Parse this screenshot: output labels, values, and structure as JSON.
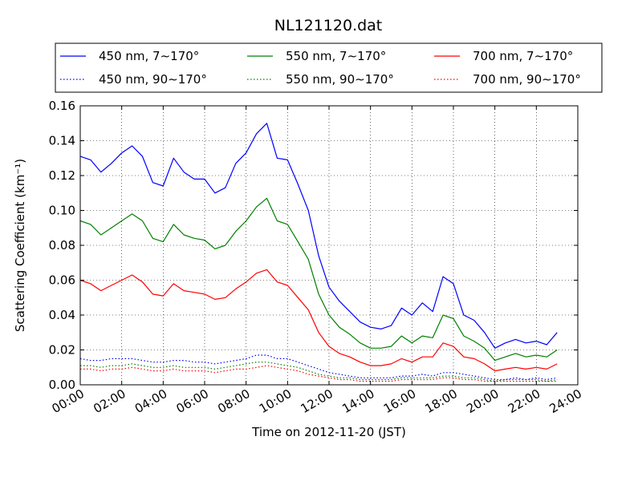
{
  "chart_data": {
    "type": "line",
    "title": "NL121120.dat",
    "xlabel": "Time on 2012-11-20 (JST)",
    "ylabel": "Scattering Coefficient (km⁻¹)",
    "xlim": [
      "00:00",
      "24:00"
    ],
    "ylim": [
      0,
      0.16
    ],
    "grid": true,
    "legend_position": "top",
    "x_ticks": [
      "00:00",
      "02:00",
      "04:00",
      "06:00",
      "08:00",
      "10:00",
      "12:00",
      "14:00",
      "16:00",
      "18:00",
      "20:00",
      "22:00",
      "24:00"
    ],
    "y_ticks": [
      "0.00",
      "0.02",
      "0.04",
      "0.06",
      "0.08",
      "0.10",
      "0.12",
      "0.14",
      "0.16"
    ],
    "x": [
      "00:00",
      "00:30",
      "01:00",
      "01:30",
      "02:00",
      "02:30",
      "03:00",
      "03:30",
      "04:00",
      "04:30",
      "05:00",
      "05:30",
      "06:00",
      "06:30",
      "07:00",
      "07:30",
      "08:00",
      "08:30",
      "09:00",
      "09:30",
      "10:00",
      "10:30",
      "11:00",
      "11:30",
      "12:00",
      "12:30",
      "13:00",
      "13:30",
      "14:00",
      "14:30",
      "15:00",
      "15:30",
      "16:00",
      "16:30",
      "17:00",
      "17:30",
      "18:00",
      "18:30",
      "19:00",
      "19:30",
      "20:00",
      "20:30",
      "21:00",
      "21:30",
      "22:00",
      "22:30",
      "23:00"
    ],
    "series": [
      {
        "name": "450 nm, 7∼170°",
        "color": "#0000ff",
        "style": "solid",
        "values": [
          0.131,
          0.129,
          0.122,
          0.127,
          0.133,
          0.137,
          0.131,
          0.116,
          0.114,
          0.13,
          0.122,
          0.118,
          0.118,
          0.11,
          0.113,
          0.127,
          0.133,
          0.144,
          0.15,
          0.13,
          0.129,
          0.115,
          0.1,
          0.074,
          0.056,
          0.048,
          0.042,
          0.036,
          0.033,
          0.032,
          0.034,
          0.044,
          0.04,
          0.047,
          0.042,
          0.062,
          0.058,
          0.04,
          0.037,
          0.03,
          0.021,
          0.024,
          0.026,
          0.024,
          0.025,
          0.023,
          0.03
        ]
      },
      {
        "name": "450 nm, 90∼170°",
        "color": "#0000ff",
        "style": "dotted",
        "values": [
          0.015,
          0.014,
          0.014,
          0.015,
          0.015,
          0.015,
          0.014,
          0.013,
          0.013,
          0.014,
          0.014,
          0.013,
          0.013,
          0.012,
          0.013,
          0.014,
          0.015,
          0.017,
          0.017,
          0.015,
          0.015,
          0.013,
          0.011,
          0.009,
          0.007,
          0.006,
          0.005,
          0.004,
          0.004,
          0.004,
          0.004,
          0.005,
          0.005,
          0.006,
          0.005,
          0.007,
          0.007,
          0.006,
          0.005,
          0.004,
          0.003,
          0.003,
          0.004,
          0.003,
          0.004,
          0.003,
          0.004
        ]
      },
      {
        "name": "550 nm, 7∼170°",
        "color": "#008000",
        "style": "solid",
        "values": [
          0.094,
          0.092,
          0.086,
          0.09,
          0.094,
          0.098,
          0.094,
          0.084,
          0.082,
          0.092,
          0.086,
          0.084,
          0.083,
          0.078,
          0.08,
          0.088,
          0.094,
          0.102,
          0.107,
          0.094,
          0.092,
          0.082,
          0.072,
          0.052,
          0.04,
          0.033,
          0.029,
          0.024,
          0.021,
          0.021,
          0.022,
          0.028,
          0.024,
          0.028,
          0.027,
          0.04,
          0.038,
          0.028,
          0.025,
          0.021,
          0.014,
          0.016,
          0.018,
          0.016,
          0.017,
          0.016,
          0.02
        ]
      },
      {
        "name": "550 nm, 90∼170°",
        "color": "#008000",
        "style": "dotted",
        "values": [
          0.011,
          0.011,
          0.01,
          0.011,
          0.011,
          0.012,
          0.011,
          0.01,
          0.01,
          0.011,
          0.01,
          0.01,
          0.01,
          0.009,
          0.01,
          0.011,
          0.012,
          0.013,
          0.013,
          0.012,
          0.011,
          0.01,
          0.008,
          0.006,
          0.005,
          0.004,
          0.004,
          0.003,
          0.003,
          0.003,
          0.003,
          0.004,
          0.004,
          0.004,
          0.004,
          0.005,
          0.005,
          0.004,
          0.004,
          0.003,
          0.002,
          0.003,
          0.003,
          0.003,
          0.003,
          0.002,
          0.003
        ]
      },
      {
        "name": "700 nm, 7∼170°",
        "color": "#ff0000",
        "style": "solid",
        "values": [
          0.06,
          0.058,
          0.054,
          0.057,
          0.06,
          0.063,
          0.059,
          0.052,
          0.051,
          0.058,
          0.054,
          0.053,
          0.052,
          0.049,
          0.05,
          0.055,
          0.059,
          0.064,
          0.066,
          0.059,
          0.057,
          0.05,
          0.043,
          0.03,
          0.022,
          0.018,
          0.016,
          0.013,
          0.011,
          0.011,
          0.012,
          0.015,
          0.013,
          0.016,
          0.016,
          0.024,
          0.022,
          0.016,
          0.015,
          0.012,
          0.008,
          0.009,
          0.01,
          0.009,
          0.01,
          0.009,
          0.012
        ]
      },
      {
        "name": "700 nm, 90∼170°",
        "color": "#ff0000",
        "style": "dotted",
        "values": [
          0.009,
          0.009,
          0.008,
          0.009,
          0.009,
          0.01,
          0.009,
          0.008,
          0.008,
          0.009,
          0.008,
          0.008,
          0.008,
          0.007,
          0.008,
          0.009,
          0.009,
          0.01,
          0.011,
          0.01,
          0.009,
          0.008,
          0.006,
          0.005,
          0.004,
          0.003,
          0.003,
          0.002,
          0.002,
          0.002,
          0.002,
          0.003,
          0.003,
          0.003,
          0.003,
          0.004,
          0.004,
          0.003,
          0.003,
          0.002,
          0.002,
          0.002,
          0.002,
          0.002,
          0.002,
          0.002,
          0.002
        ]
      }
    ]
  }
}
